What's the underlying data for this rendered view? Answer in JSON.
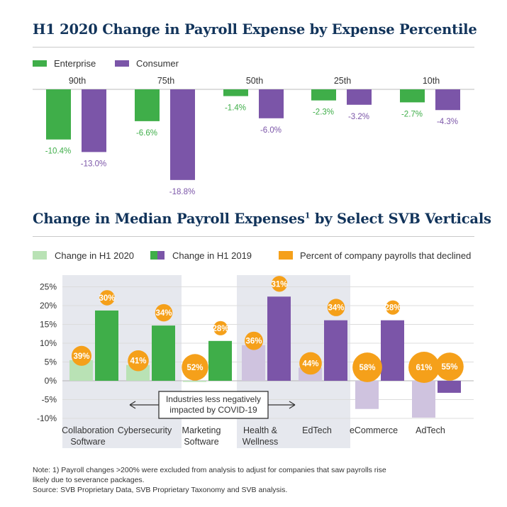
{
  "colors": {
    "enterprise": "#3fae49",
    "consumer": "#7b55a8",
    "h1_2020_green": "#b9e2b5",
    "h1_2020_purple": "#cfc3df",
    "declined": "#f5a01a",
    "title": "#12345b",
    "shade": "#e6e8ee"
  },
  "chart_data": [
    {
      "type": "bar",
      "title": "H1 2020 Change in Payroll Expense by Expense Percentile",
      "legend": {
        "placement": "top-left",
        "entries": [
          "Enterprise",
          "Consumer"
        ]
      },
      "categories": [
        "90th",
        "75th",
        "50th",
        "25th",
        "10th"
      ],
      "series": [
        {
          "name": "Enterprise",
          "values": [
            -10.4,
            -6.6,
            -1.4,
            -2.3,
            -2.7
          ],
          "labels": [
            "-10.4%",
            "-6.6%",
            "-1.4%",
            "-2.3%",
            "-2.7%"
          ]
        },
        {
          "name": "Consumer",
          "values": [
            -13.0,
            -18.8,
            -6.0,
            -3.2,
            -4.3
          ],
          "labels": [
            "-13.0%",
            "-18.8%",
            "-6.0%",
            "-3.2%",
            "-4.3%"
          ]
        }
      ],
      "ylim": [
        -20,
        0
      ],
      "grid": false
    },
    {
      "type": "bar",
      "title": "Change in Median Payroll Expenses",
      "title_sup": "1",
      "title_rest": " by Select SVB Verticals",
      "legend": {
        "placement": "top",
        "entries": [
          "Change in H1 2020",
          "Change in H1 2019",
          "Percent of company payrolls that declined"
        ]
      },
      "categories": [
        "Collaboration\nSoftware",
        "Cybersecurity",
        "Marketing\nSoftware",
        "Health &\nWellness",
        "EdTech",
        "eCommerce",
        "AdTech"
      ],
      "series": [
        {
          "name": "Change in H1 2020",
          "values": [
            5.5,
            4.2,
            -0.3,
            9.5,
            3.5,
            -7.5,
            -9.8
          ]
        },
        {
          "name": "Change in H1 2019",
          "values": [
            18.7,
            14.7,
            10.6,
            22.4,
            16.1,
            16.1,
            -3.2
          ]
        },
        {
          "name": "Percent of company payrolls that declined",
          "values": [
            39,
            41,
            52,
            36,
            44,
            58,
            61
          ],
          "labels": [
            "39%",
            "41%",
            "52%",
            "36%",
            "44%",
            "58%",
            "61%"
          ]
        }
      ],
      "declined_2019": {
        "values": [
          30,
          34,
          28,
          31,
          34,
          28,
          55
        ],
        "labels": [
          "30%",
          "34%",
          "28%",
          "31%",
          "34%",
          "28%",
          "55%"
        ]
      },
      "category_group": [
        "enterprise",
        "enterprise",
        "enterprise",
        "consumer",
        "consumer",
        "consumer",
        "consumer"
      ],
      "ytick_labels": [
        "25%",
        "20%",
        "15%",
        "10%",
        "5%",
        "0%",
        "-5%",
        "-10%"
      ],
      "yticks": [
        25,
        20,
        15,
        10,
        5,
        0,
        -5,
        -10
      ],
      "ylim": [
        -10,
        25
      ],
      "grid": true,
      "annotation": "Industries less negatively\nimpacted by COVID-19"
    }
  ],
  "notes": {
    "line1": "Note: 1) Payroll changes >200% were excluded from analysis to adjust for companies that saw payrolls rise",
    "line2": "likely due to severance packages.",
    "line3": "Source: SVB Proprietary Data, SVB Proprietary Taxonomy and SVB analysis."
  }
}
